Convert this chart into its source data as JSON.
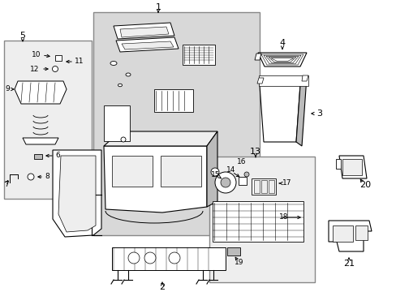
{
  "bg_color": "#ffffff",
  "fig_width": 4.89,
  "fig_height": 3.6,
  "dpi": 100,
  "gray_box_color": "#d8d8d8",
  "light_gray": "#eeeeee",
  "mid_gray": "#bbbbbb",
  "border_color": "#888888"
}
